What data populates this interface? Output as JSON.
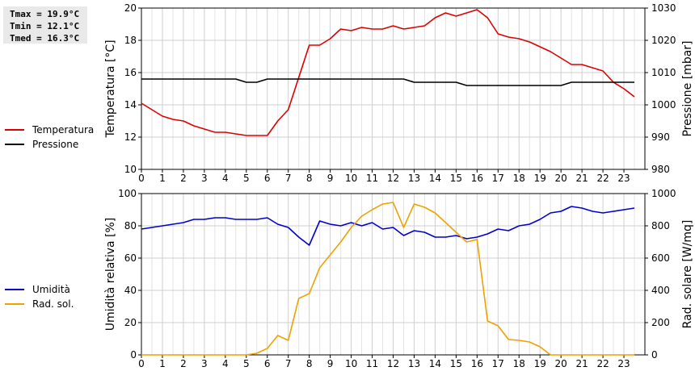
{
  "stats": {
    "tmax": "Tmax = 19.9°C",
    "tmin": "Tmin = 12.1°C",
    "tmed": "Tmed = 16.3°C"
  },
  "chart_data": [
    {
      "type": "line",
      "ylabel": "Temperatura [°C]",
      "y2label": "Pressione [mbar]",
      "xlim": [
        0,
        24
      ],
      "ylim": [
        10,
        20
      ],
      "y2lim": [
        980,
        1030
      ],
      "xticks": [
        0,
        1,
        2,
        3,
        4,
        5,
        6,
        7,
        8,
        9,
        10,
        11,
        12,
        13,
        14,
        15,
        16,
        17,
        18,
        19,
        20,
        21,
        22,
        23
      ],
      "yticks": [
        10,
        12,
        14,
        16,
        18,
        20
      ],
      "y2ticks": [
        980,
        990,
        1000,
        1010,
        1020,
        1030
      ],
      "grid": true,
      "legend_position": "left",
      "series": [
        {
          "name": "Temperatura",
          "axis": "left",
          "color": "#dd0000",
          "x": [
            0,
            0.5,
            1,
            1.5,
            2,
            2.5,
            3,
            3.5,
            4,
            4.5,
            5,
            5.5,
            6,
            6.5,
            7,
            7.5,
            8,
            8.5,
            9,
            9.5,
            10,
            10.5,
            11,
            11.5,
            12,
            12.5,
            13,
            13.5,
            14,
            14.5,
            15,
            15.5,
            16,
            16.5,
            17,
            17.5,
            18,
            18.5,
            19,
            19.5,
            20,
            20.5,
            21,
            21.5,
            22,
            22.5,
            23,
            23.5
          ],
          "values": [
            14.1,
            13.7,
            13.3,
            13.1,
            13.0,
            12.7,
            12.5,
            12.3,
            12.3,
            12.2,
            12.1,
            12.1,
            12.1,
            13.0,
            13.7,
            15.7,
            17.7,
            17.7,
            18.1,
            18.7,
            18.6,
            18.8,
            18.7,
            18.7,
            18.9,
            18.7,
            18.8,
            18.9,
            19.4,
            19.7,
            19.5,
            19.7,
            19.9,
            19.4,
            18.4,
            18.2,
            18.1,
            17.9,
            17.6,
            17.3,
            16.9,
            16.5,
            16.5,
            16.3,
            16.1,
            15.4,
            15.0,
            14.5
          ]
        },
        {
          "name": "Pressione",
          "axis": "right",
          "color": "#000000",
          "x": [
            0,
            4.5,
            5,
            5.5,
            6,
            12.5,
            13,
            15,
            15.5,
            20,
            20.5,
            23.5
          ],
          "values": [
            1008,
            1008,
            1007,
            1007,
            1008,
            1008,
            1007,
            1007,
            1006,
            1006,
            1007,
            1007
          ]
        }
      ]
    },
    {
      "type": "line",
      "ylabel": "Umidità relativa [%]",
      "y2label": "Rad. solare [W/mq]",
      "xlim": [
        0,
        24
      ],
      "ylim": [
        0,
        100
      ],
      "y2lim": [
        0,
        1000
      ],
      "xticks": [
        0,
        1,
        2,
        3,
        4,
        5,
        6,
        7,
        8,
        9,
        10,
        11,
        12,
        13,
        14,
        15,
        16,
        17,
        18,
        19,
        20,
        21,
        22,
        23
      ],
      "yticks": [
        0,
        20,
        40,
        60,
        80,
        100
      ],
      "y2ticks": [
        0,
        200,
        400,
        600,
        800,
        1000
      ],
      "grid": true,
      "legend_position": "left",
      "series": [
        {
          "name": "Umidità",
          "axis": "left",
          "color": "#0000cc",
          "x": [
            0,
            0.5,
            1,
            1.5,
            2,
            2.5,
            3,
            3.5,
            4,
            4.5,
            5,
            5.5,
            6,
            6.5,
            7,
            7.5,
            8,
            8.5,
            9,
            9.5,
            10,
            10.5,
            11,
            11.5,
            12,
            12.5,
            13,
            13.5,
            14,
            14.5,
            15,
            15.5,
            16,
            16.5,
            17,
            17.5,
            18,
            18.5,
            19,
            19.5,
            20,
            20.5,
            21,
            21.5,
            22,
            22.5,
            23,
            23.5
          ],
          "values": [
            78,
            79,
            80,
            81,
            82,
            84,
            84,
            85,
            85,
            84,
            84,
            84,
            85,
            81,
            79,
            73,
            68,
            83,
            81,
            80,
            82,
            80,
            82,
            78,
            79,
            74,
            77,
            76,
            73,
            73,
            74,
            72,
            73,
            75,
            78,
            77,
            80,
            81,
            84,
            88,
            89,
            92,
            91,
            89,
            88,
            89,
            90,
            91
          ]
        },
        {
          "name": "Rad. sol.",
          "axis": "right",
          "color": "#f0a000",
          "x": [
            0,
            0.5,
            1,
            1.5,
            2,
            2.5,
            3,
            3.5,
            4,
            4.5,
            5,
            5.5,
            6,
            6.5,
            7,
            7.5,
            8,
            8.5,
            9,
            9.5,
            10,
            10.5,
            11,
            11.5,
            12,
            12.5,
            13,
            13.5,
            14,
            14.5,
            15,
            15.5,
            16,
            16.5,
            17,
            17.5,
            18,
            18.5,
            19,
            19.5,
            20,
            20.5,
            21,
            21.5,
            22,
            22.5,
            23,
            23.5
          ],
          "values": [
            0,
            0,
            0,
            0,
            0,
            0,
            0,
            0,
            0,
            0,
            0,
            10,
            40,
            120,
            90,
            350,
            380,
            540,
            620,
            700,
            790,
            860,
            900,
            935,
            945,
            790,
            935,
            915,
            880,
            820,
            760,
            700,
            715,
            210,
            180,
            95,
            90,
            80,
            50,
            0,
            0,
            0,
            0,
            0,
            0,
            0,
            0,
            0
          ]
        }
      ]
    }
  ]
}
